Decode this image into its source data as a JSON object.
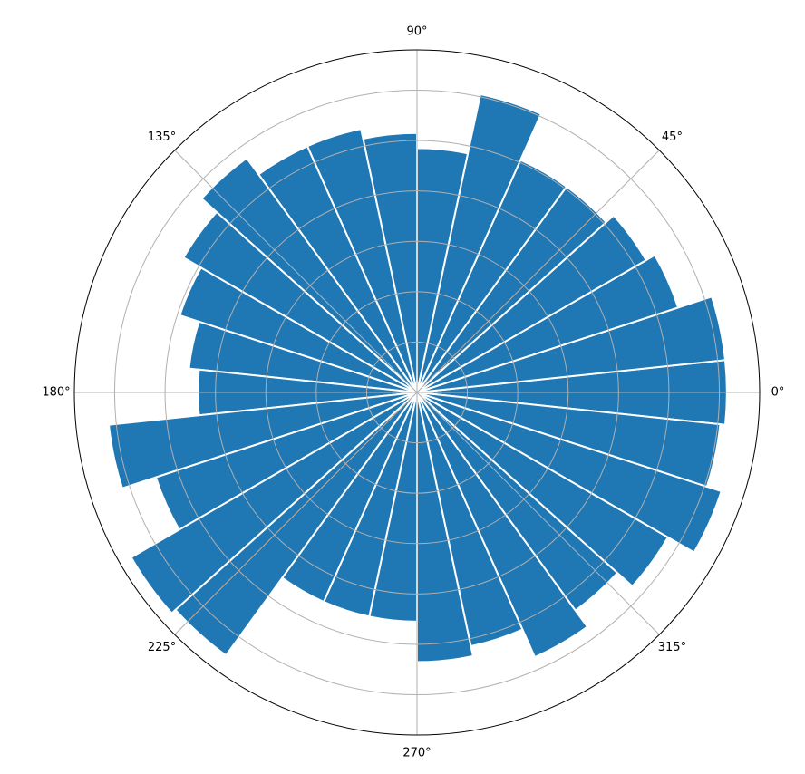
{
  "chart_data": {
    "type": "polar-bar",
    "title": "",
    "theta_tick_labels": [
      "0°",
      "45°",
      "90°",
      "135°",
      "180°",
      "225°",
      "270°",
      "315°"
    ],
    "theta_ticks_deg": [
      0,
      45,
      90,
      135,
      180,
      225,
      270,
      315
    ],
    "r_grid_values": [
      1,
      2,
      3,
      4,
      5,
      6
    ],
    "r_max": 6.8,
    "r_tick_labels_shown": false,
    "grid": true,
    "bar_color": "#1f77b4",
    "edge_color": "#ffffff",
    "bars": [
      {
        "theta_deg": 0,
        "r": 6.15
      },
      {
        "theta_deg": 12,
        "r": 6.15
      },
      {
        "theta_deg": 24,
        "r": 5.45
      },
      {
        "theta_deg": 36,
        "r": 5.25
      },
      {
        "theta_deg": 48,
        "r": 5.05
      },
      {
        "theta_deg": 60,
        "r": 5.05
      },
      {
        "theta_deg": 72,
        "r": 6.05
      },
      {
        "theta_deg": 84,
        "r": 4.85
      },
      {
        "theta_deg": 96,
        "r": 5.15
      },
      {
        "theta_deg": 108,
        "r": 5.35
      },
      {
        "theta_deg": 120,
        "r": 5.35
      },
      {
        "theta_deg": 132,
        "r": 5.75
      },
      {
        "theta_deg": 144,
        "r": 5.35
      },
      {
        "theta_deg": 156,
        "r": 4.95
      },
      {
        "theta_deg": 168,
        "r": 4.55
      },
      {
        "theta_deg": 180,
        "r": 4.35
      },
      {
        "theta_deg": 192,
        "r": 6.15
      },
      {
        "theta_deg": 204,
        "r": 5.45
      },
      {
        "theta_deg": 216,
        "r": 6.55
      },
      {
        "theta_deg": 228,
        "r": 6.45
      },
      {
        "theta_deg": 240,
        "r": 4.55
      },
      {
        "theta_deg": 252,
        "r": 4.55
      },
      {
        "theta_deg": 264,
        "r": 4.55
      },
      {
        "theta_deg": 276,
        "r": 5.35
      },
      {
        "theta_deg": 288,
        "r": 5.15
      },
      {
        "theta_deg": 300,
        "r": 5.75
      },
      {
        "theta_deg": 312,
        "r": 5.35
      },
      {
        "theta_deg": 324,
        "r": 5.75
      },
      {
        "theta_deg": 336,
        "r": 6.35
      },
      {
        "theta_deg": 348,
        "r": 6.05
      }
    ],
    "bar_width_deg": 12
  }
}
